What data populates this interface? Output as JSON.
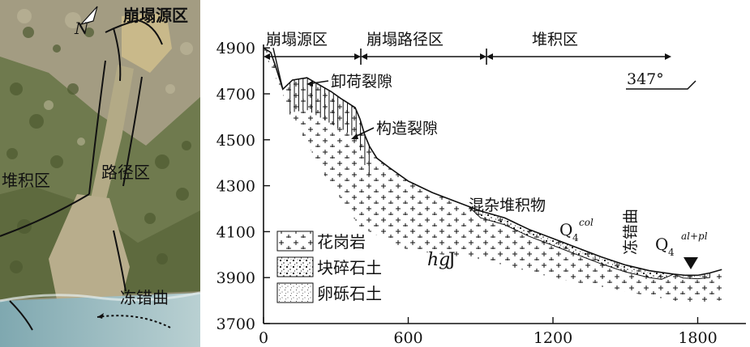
{
  "photo": {
    "north_label": "N",
    "label_source": "崩塌源区",
    "label_path": "路径区",
    "label_deposit": "堆积区",
    "label_river": "冻错曲"
  },
  "profile": {
    "zone_labels": [
      "崩塌源区",
      "崩塌路径区",
      "堆积区"
    ],
    "orientation": "347°",
    "annotation_unloading": "卸荷裂隙",
    "annotation_tectonic": "构造裂隙",
    "annotation_mixed": "混杂堆积物",
    "annotation_river": "冻错曲",
    "q4_col_main": "Q",
    "q4_col_sub": "4",
    "q4_col_sup": "col",
    "q4_al_main": "Q",
    "q4_al_sub": "4",
    "q4_al_sup": "al+pl",
    "hgj_italic": "hg",
    "hgj_normal": "J",
    "legend": [
      "花岗岩",
      "块碎石土",
      "卵砾石土"
    ]
  },
  "chart_data": {
    "type": "line",
    "title": "",
    "xlabel": "",
    "ylabel": "",
    "x_ticks": [
      0,
      600,
      1200,
      1800
    ],
    "y_ticks": [
      3700,
      3900,
      4100,
      4300,
      4500,
      4700,
      4900
    ],
    "xlim": [
      0,
      2000
    ],
    "ylim": [
      3700,
      4950
    ],
    "series": [
      {
        "x": [
          0,
          30,
          50,
          80,
          120,
          180,
          230,
          280,
          320,
          350,
          380,
          400,
          420,
          440,
          470,
          520,
          600,
          700,
          800,
          900,
          1000,
          1100,
          1200,
          1300,
          1400,
          1500,
          1600,
          1700,
          1750,
          1800,
          1850,
          1900
        ],
        "y": [
          4900,
          4880,
          4820,
          4720,
          4760,
          4770,
          4740,
          4710,
          4680,
          4660,
          4640,
          4590,
          4520,
          4470,
          4420,
          4380,
          4320,
          4270,
          4230,
          4190,
          4160,
          4110,
          4070,
          4030,
          3990,
          3955,
          3930,
          3915,
          3910,
          3910,
          3920,
          3935
        ]
      }
    ]
  }
}
